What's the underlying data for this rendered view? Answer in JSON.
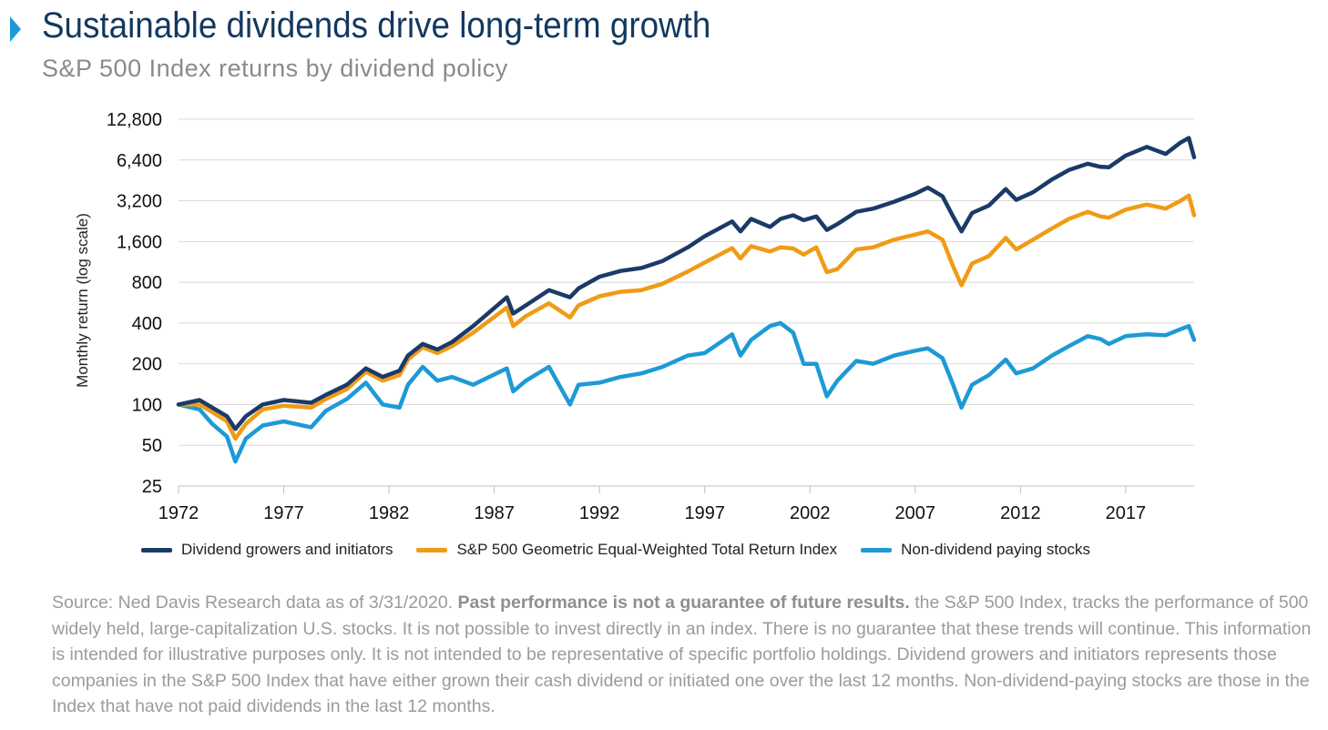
{
  "header": {
    "title": "Sustainable dividends drive long-term growth",
    "subtitle": "S&P 500 Index returns by dividend policy"
  },
  "colors": {
    "accent": "#1d9ad6",
    "title": "#12385f",
    "grid": "#d9d9d9"
  },
  "chart_data": {
    "type": "line",
    "title": "",
    "ylabel": "Monthly return (log scale)",
    "xlabel": "",
    "y_scale": "log2",
    "ylim": [
      25,
      12800
    ],
    "xlim": [
      1972,
      2020.25
    ],
    "y_ticks": [
      25,
      50,
      100,
      200,
      400,
      800,
      1600,
      3200,
      6400,
      12800
    ],
    "y_tick_labels": [
      "25",
      "50",
      "100",
      "200",
      "400",
      "800",
      "1,600",
      "3,200",
      "6,400",
      "12,800"
    ],
    "x_ticks": [
      1972,
      1977,
      1982,
      1987,
      1992,
      1997,
      2002,
      2007,
      2012,
      2017
    ],
    "x_tick_labels": [
      "1972",
      "1977",
      "1982",
      "1987",
      "1992",
      "1997",
      "2002",
      "2007",
      "2012",
      "2017"
    ],
    "grid": "horizontal",
    "legend_position": "bottom",
    "series": [
      {
        "name": "Dividend growers and initiators",
        "color": "#1b3a68",
        "points": [
          [
            1972,
            100
          ],
          [
            1973,
            108
          ],
          [
            1973.6,
            95
          ],
          [
            1974.3,
            82
          ],
          [
            1974.7,
            66
          ],
          [
            1975.2,
            82
          ],
          [
            1976,
            100
          ],
          [
            1977,
            108
          ],
          [
            1978.3,
            103
          ],
          [
            1979,
            118
          ],
          [
            1980,
            140
          ],
          [
            1980.9,
            185
          ],
          [
            1981.7,
            160
          ],
          [
            1982.5,
            178
          ],
          [
            1982.9,
            230
          ],
          [
            1983.6,
            280
          ],
          [
            1984.3,
            255
          ],
          [
            1985,
            290
          ],
          [
            1986,
            380
          ],
          [
            1987.6,
            620
          ],
          [
            1987.9,
            470
          ],
          [
            1988.5,
            540
          ],
          [
            1989.6,
            700
          ],
          [
            1990.6,
            620
          ],
          [
            1991,
            720
          ],
          [
            1992,
            880
          ],
          [
            1993,
            970
          ],
          [
            1994,
            1020
          ],
          [
            1995,
            1150
          ],
          [
            1996.2,
            1450
          ],
          [
            1997,
            1750
          ],
          [
            1998.3,
            2250
          ],
          [
            1998.7,
            1900
          ],
          [
            1999.2,
            2350
          ],
          [
            2000.1,
            2050
          ],
          [
            2000.6,
            2350
          ],
          [
            2001.2,
            2500
          ],
          [
            2001.7,
            2300
          ],
          [
            2002.3,
            2450
          ],
          [
            2002.8,
            1950
          ],
          [
            2003.3,
            2150
          ],
          [
            2004.2,
            2650
          ],
          [
            2005,
            2800
          ],
          [
            2006,
            3150
          ],
          [
            2007,
            3600
          ],
          [
            2007.6,
            4000
          ],
          [
            2008.3,
            3450
          ],
          [
            2008.8,
            2450
          ],
          [
            2009.2,
            1900
          ],
          [
            2009.7,
            2600
          ],
          [
            2010.5,
            2950
          ],
          [
            2011.3,
            3900
          ],
          [
            2011.8,
            3250
          ],
          [
            2012.6,
            3700
          ],
          [
            2013.5,
            4600
          ],
          [
            2014.3,
            5400
          ],
          [
            2015.2,
            6000
          ],
          [
            2015.8,
            5700
          ],
          [
            2016.2,
            5650
          ],
          [
            2017,
            6900
          ],
          [
            2018,
            8000
          ],
          [
            2018.9,
            7100
          ],
          [
            2019.6,
            8600
          ],
          [
            2020.0,
            9300
          ],
          [
            2020.25,
            6700
          ]
        ]
      },
      {
        "name": "S&P 500 Geometric Equal-Weighted Total Return Index",
        "color": "#f09b16",
        "points": [
          [
            1972,
            100
          ],
          [
            1973,
            100
          ],
          [
            1973.6,
            88
          ],
          [
            1974.3,
            75
          ],
          [
            1974.7,
            56
          ],
          [
            1975.2,
            72
          ],
          [
            1976,
            92
          ],
          [
            1977,
            98
          ],
          [
            1978.3,
            95
          ],
          [
            1979,
            110
          ],
          [
            1980,
            130
          ],
          [
            1980.9,
            175
          ],
          [
            1981.7,
            150
          ],
          [
            1982.5,
            165
          ],
          [
            1982.9,
            215
          ],
          [
            1983.6,
            265
          ],
          [
            1984.3,
            240
          ],
          [
            1985,
            270
          ],
          [
            1986,
            340
          ],
          [
            1987.6,
            520
          ],
          [
            1987.9,
            380
          ],
          [
            1988.5,
            450
          ],
          [
            1989.6,
            560
          ],
          [
            1990.6,
            440
          ],
          [
            1991,
            540
          ],
          [
            1992,
            630
          ],
          [
            1993,
            680
          ],
          [
            1994,
            700
          ],
          [
            1995,
            780
          ],
          [
            1996.2,
            960
          ],
          [
            1997,
            1120
          ],
          [
            1998.3,
            1430
          ],
          [
            1998.7,
            1200
          ],
          [
            1999.2,
            1480
          ],
          [
            2000.1,
            1350
          ],
          [
            2000.6,
            1450
          ],
          [
            2001.2,
            1420
          ],
          [
            2001.7,
            1280
          ],
          [
            2002.3,
            1450
          ],
          [
            2002.8,
            950
          ],
          [
            2003.3,
            1000
          ],
          [
            2004.2,
            1400
          ],
          [
            2005,
            1450
          ],
          [
            2006,
            1650
          ],
          [
            2007,
            1800
          ],
          [
            2007.6,
            1900
          ],
          [
            2008.3,
            1650
          ],
          [
            2008.8,
            1050
          ],
          [
            2009.2,
            760
          ],
          [
            2009.7,
            1100
          ],
          [
            2010.5,
            1250
          ],
          [
            2011.3,
            1700
          ],
          [
            2011.8,
            1400
          ],
          [
            2012.6,
            1650
          ],
          [
            2013.5,
            2000
          ],
          [
            2014.3,
            2350
          ],
          [
            2015.2,
            2650
          ],
          [
            2015.8,
            2450
          ],
          [
            2016.2,
            2400
          ],
          [
            2017,
            2750
          ],
          [
            2018,
            3000
          ],
          [
            2018.9,
            2800
          ],
          [
            2019.6,
            3200
          ],
          [
            2020.0,
            3500
          ],
          [
            2020.25,
            2500
          ]
        ]
      },
      {
        "name": "Non-dividend paying stocks",
        "color": "#1d9ad6",
        "points": [
          [
            1972,
            100
          ],
          [
            1973,
            92
          ],
          [
            1973.6,
            72
          ],
          [
            1974.3,
            58
          ],
          [
            1974.7,
            38
          ],
          [
            1975.2,
            56
          ],
          [
            1976,
            70
          ],
          [
            1977,
            75
          ],
          [
            1978.3,
            68
          ],
          [
            1979,
            90
          ],
          [
            1980,
            110
          ],
          [
            1980.9,
            145
          ],
          [
            1981.7,
            100
          ],
          [
            1982.5,
            95
          ],
          [
            1982.9,
            140
          ],
          [
            1983.6,
            190
          ],
          [
            1984.3,
            150
          ],
          [
            1985,
            160
          ],
          [
            1986,
            140
          ],
          [
            1987.6,
            185
          ],
          [
            1987.9,
            125
          ],
          [
            1988.5,
            150
          ],
          [
            1989.6,
            190
          ],
          [
            1990.6,
            100
          ],
          [
            1991,
            140
          ],
          [
            1992,
            145
          ],
          [
            1993,
            160
          ],
          [
            1994,
            170
          ],
          [
            1995,
            190
          ],
          [
            1996.2,
            230
          ],
          [
            1997,
            240
          ],
          [
            1998.3,
            330
          ],
          [
            1998.7,
            230
          ],
          [
            1999.2,
            300
          ],
          [
            2000.1,
            380
          ],
          [
            2000.6,
            400
          ],
          [
            2001.2,
            340
          ],
          [
            2001.7,
            200
          ],
          [
            2002.3,
            200
          ],
          [
            2002.8,
            115
          ],
          [
            2003.3,
            150
          ],
          [
            2004.2,
            210
          ],
          [
            2005,
            200
          ],
          [
            2006,
            230
          ],
          [
            2007,
            250
          ],
          [
            2007.6,
            260
          ],
          [
            2008.3,
            220
          ],
          [
            2008.8,
            140
          ],
          [
            2009.2,
            95
          ],
          [
            2009.7,
            140
          ],
          [
            2010.5,
            165
          ],
          [
            2011.3,
            215
          ],
          [
            2011.8,
            170
          ],
          [
            2012.6,
            185
          ],
          [
            2013.5,
            230
          ],
          [
            2014.3,
            270
          ],
          [
            2015.2,
            320
          ],
          [
            2015.8,
            305
          ],
          [
            2016.2,
            280
          ],
          [
            2017,
            320
          ],
          [
            2018,
            330
          ],
          [
            2018.9,
            325
          ],
          [
            2019.6,
            360
          ],
          [
            2020.0,
            380
          ],
          [
            2020.25,
            300
          ]
        ]
      }
    ]
  },
  "footnote": {
    "part1": "Source: Ned Davis Research data as of 3/31/2020. ",
    "bold": "Past performance is not a guarantee of future results.",
    "part2": " the S&P 500 Index, tracks the performance of 500 widely held, large-capitalization U.S. stocks. It is not possible to invest directly in an index. There is no guarantee that these trends will continue. This information is intended for illustrative purposes only. It is not intended to be representative of specific portfolio holdings. Dividend growers and initiators represents those companies in the S&P 500 Index that have either grown their cash dividend or initiated one over the last 12 months. Non-dividend-paying stocks are those in the Index that have not paid dividends in the last 12 months."
  }
}
